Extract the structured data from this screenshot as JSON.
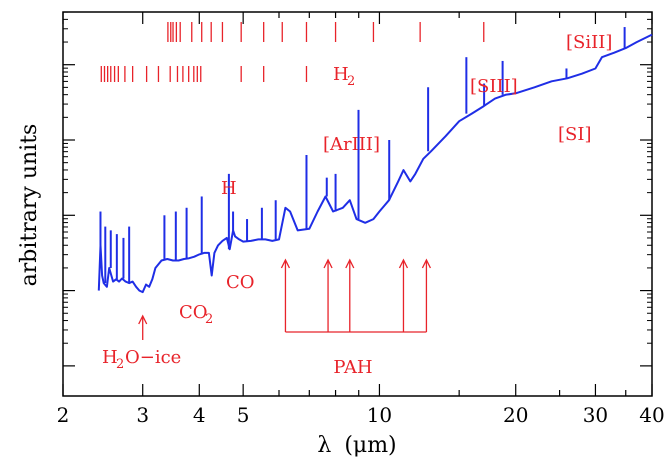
{
  "chart_data": {
    "type": "line",
    "xlabel_sym": "λ",
    "xlabel_unit": "(μm)",
    "ylabel": "arbitrary units",
    "xlim": [
      2,
      40
    ],
    "xscale": "log",
    "yscale": "log",
    "ylim_decades": [
      -1.9,
      3.2
    ],
    "x_ticks": [
      2,
      3,
      4,
      5,
      10,
      20,
      30,
      40
    ],
    "colors": {
      "spectrum": "#1f2ee6",
      "annotation": "#e8232a",
      "axis": "#000000"
    },
    "series": [
      {
        "points": [
          [
            2.4,
            -0.5
          ],
          [
            2.42,
            0.1
          ],
          [
            2.44,
            -0.3
          ],
          [
            2.46,
            -0.4
          ],
          [
            2.5,
            -0.45
          ],
          [
            2.53,
            -0.2
          ],
          [
            2.58,
            -0.38
          ],
          [
            2.62,
            -0.35
          ],
          [
            2.66,
            -0.38
          ],
          [
            2.7,
            -0.34
          ],
          [
            2.75,
            -0.38
          ],
          [
            2.8,
            -0.4
          ],
          [
            2.85,
            -0.38
          ],
          [
            2.9,
            -0.45
          ],
          [
            2.95,
            -0.5
          ],
          [
            3.0,
            -0.52
          ],
          [
            3.05,
            -0.42
          ],
          [
            3.1,
            -0.45
          ],
          [
            3.15,
            -0.35
          ],
          [
            3.2,
            -0.2
          ],
          [
            3.3,
            -0.1
          ],
          [
            3.4,
            -0.08
          ],
          [
            3.5,
            -0.1
          ],
          [
            3.6,
            -0.1
          ],
          [
            3.7,
            -0.08
          ],
          [
            3.8,
            -0.07
          ],
          [
            3.9,
            -0.05
          ],
          [
            4.0,
            -0.02
          ],
          [
            4.1,
            0.0
          ],
          [
            4.2,
            0.0
          ],
          [
            4.26,
            -0.3
          ],
          [
            4.32,
            0.0
          ],
          [
            4.4,
            0.1
          ],
          [
            4.5,
            0.16
          ],
          [
            4.6,
            0.2
          ],
          [
            4.67,
            0.05
          ],
          [
            4.75,
            0.3
          ],
          [
            4.8,
            0.22
          ],
          [
            4.9,
            0.18
          ],
          [
            5.0,
            0.15
          ],
          [
            5.2,
            0.16
          ],
          [
            5.4,
            0.18
          ],
          [
            5.6,
            0.18
          ],
          [
            5.8,
            0.16
          ],
          [
            6.0,
            0.18
          ],
          [
            6.2,
            0.6
          ],
          [
            6.35,
            0.55
          ],
          [
            6.6,
            0.3
          ],
          [
            7.0,
            0.32
          ],
          [
            7.3,
            0.55
          ],
          [
            7.6,
            0.75
          ],
          [
            7.9,
            0.55
          ],
          [
            8.3,
            0.6
          ],
          [
            8.6,
            0.7
          ],
          [
            8.9,
            0.45
          ],
          [
            9.3,
            0.4
          ],
          [
            9.7,
            0.45
          ],
          [
            10.0,
            0.55
          ],
          [
            10.5,
            0.7
          ],
          [
            11.0,
            0.95
          ],
          [
            11.3,
            1.1
          ],
          [
            11.7,
            0.95
          ],
          [
            12.0,
            1.05
          ],
          [
            12.5,
            1.25
          ],
          [
            13.0,
            1.35
          ],
          [
            14.0,
            1.55
          ],
          [
            15.0,
            1.75
          ],
          [
            16.0,
            1.85
          ],
          [
            17.0,
            1.95
          ],
          [
            18.0,
            2.05
          ],
          [
            19.0,
            2.1
          ],
          [
            20.0,
            2.12
          ],
          [
            22.0,
            2.2
          ],
          [
            24.0,
            2.28
          ],
          [
            26.0,
            2.32
          ],
          [
            28.0,
            2.38
          ],
          [
            30.0,
            2.45
          ],
          [
            31.0,
            2.6
          ],
          [
            33.0,
            2.66
          ],
          [
            35.0,
            2.72
          ],
          [
            37.0,
            2.8
          ],
          [
            40.0,
            2.9
          ]
        ],
        "lines": [
          [
            2.42,
            0.55
          ],
          [
            2.48,
            0.35
          ],
          [
            2.55,
            0.3
          ],
          [
            2.63,
            0.25
          ],
          [
            2.72,
            0.2
          ],
          [
            2.8,
            0.35
          ],
          [
            3.35,
            0.5
          ],
          [
            3.55,
            0.55
          ],
          [
            3.75,
            0.6
          ],
          [
            4.05,
            0.75
          ],
          [
            4.65,
            1.05
          ],
          [
            4.75,
            0.55
          ],
          [
            5.1,
            0.45
          ],
          [
            5.5,
            0.6
          ],
          [
            5.9,
            0.7
          ],
          [
            6.9,
            1.3
          ],
          [
            7.65,
            1.0
          ],
          [
            8.0,
            1.05
          ],
          [
            8.99,
            1.9
          ],
          [
            10.51,
            1.5
          ],
          [
            12.81,
            2.2
          ],
          [
            15.56,
            2.6
          ],
          [
            17.03,
            2.25
          ],
          [
            18.71,
            2.55
          ],
          [
            25.89,
            2.45
          ],
          [
            34.8,
            3.0
          ]
        ]
      }
    ],
    "ticks_row1": [
      3.41,
      3.46,
      3.5,
      3.56,
      3.63,
      3.85,
      4.05,
      4.25,
      4.5,
      4.95,
      5.55,
      6.1,
      6.9,
      8.0,
      9.7,
      12.3,
      17.0
    ],
    "ticks_row2": [
      2.43,
      2.47,
      2.51,
      2.55,
      2.6,
      2.65,
      2.74,
      2.85,
      3.06,
      3.25,
      3.45,
      3.58,
      3.68,
      3.79,
      3.89,
      3.96,
      4.03,
      4.95,
      5.55,
      6.9
    ],
    "labels": {
      "h2": "H",
      "h2_sub": "2",
      "sii": "[SiII]",
      "siii": "[SIII]",
      "si": "[SI]",
      "ariii": "[ArIII]",
      "h": "H",
      "co": "CO",
      "co2": "CO",
      "co2_sub": "2",
      "h2o_a": "H",
      "h2o_sub": "2",
      "h2o_b": "O−ice",
      "pah": "PAH"
    },
    "pah_arrows": [
      6.2,
      7.7,
      8.6,
      11.3,
      12.7
    ],
    "ice_arrow": 3.0
  }
}
